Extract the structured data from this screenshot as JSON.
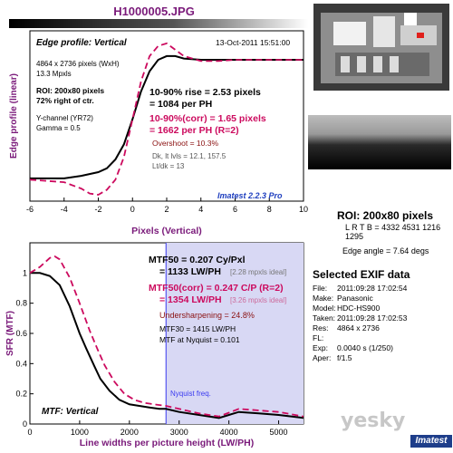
{
  "filename": "H1000005.JPG",
  "edge_panel": {
    "heading": "Edge profile: Vertical",
    "date": "13-Oct-2011 15:51:00",
    "info": [
      "4864 x 2736 pixels (WxH)",
      "13.3 Mpxls"
    ],
    "roi_info": [
      "ROI: 200x80 pixels",
      "72% right of ctr."
    ],
    "channel": [
      "Y-channel (YR72)",
      "Gamma = 0.5"
    ],
    "rise": [
      "10-90% rise = 2.53 pixels",
      "= 1084 per PH"
    ],
    "rise_corr": [
      "10-90%(corr) = 1.65 pixels",
      "= 1662 per PH (R=2)"
    ],
    "overshoot": "Overshoot = 10.3%",
    "levels": [
      "Dk, lt lvls = 12.1, 157.5",
      "Lt/dk = 13"
    ],
    "imatest": "Imatest 2.2.3 Pro"
  },
  "mtf_panel": {
    "mtf50": [
      "MTF50 = 0.207 Cy/Pxl",
      "= 1133 LW/PH"
    ],
    "mtf50_ideal": "[2.28 mpxls ideal]",
    "mtf50_corr": [
      "MTF50(corr) = 0.247 C/P (R=2)",
      "= 1354 LW/PH"
    ],
    "mtf50_corr_ideal": "[3.26 mpxls ideal]",
    "undersharpening": "Undersharpening = 24.8%",
    "mtf30": "MTF30 = 1415 LW/PH",
    "nyq": "MTF at Nyquist = 0.101",
    "nyq_label": "Nyquist freq.",
    "heading": "MTF: Vertical"
  },
  "roi": {
    "title": "ROI: 200x80 pixels",
    "sub": "L R T B = 4332 4531  1216 1295"
  },
  "edge_angle": "Edge angle = 7.64 degs",
  "exif": {
    "title": "Selected EXIF data",
    "rows": [
      {
        "k": "File:",
        "v": "2011:09:28 17:02:54"
      },
      {
        "k": "Make:",
        "v": "Panasonic"
      },
      {
        "k": "Model:",
        "v": "HDC-HS900"
      },
      {
        "k": "Taken:",
        "v": "2011:09:28 17:02:53"
      },
      {
        "k": "Res:",
        "v": "4864 x 2736"
      },
      {
        "k": "FL:",
        "v": ""
      },
      {
        "k": "Exp:",
        "v": "0.0040 s   (1/250)"
      },
      {
        "k": "Aper:",
        "v": "f/1.5"
      }
    ]
  },
  "watermark": "yesky",
  "brand": "Imatest",
  "colors": {
    "measured": "#000000",
    "corrected": "#cc0a5e",
    "title": "#7a1a7a",
    "nyquist_band": "#d8d8f4"
  },
  "chart_data": [
    {
      "type": "line",
      "xlabel": "Pixels (Vertical)",
      "ylabel": "Edge profile (linear)",
      "xlim": [
        -6,
        10
      ],
      "ylim": [
        -0.15,
        1.2
      ],
      "xticks": [
        "-6",
        "-4",
        "-2",
        "0",
        "2",
        "4",
        "6",
        "8",
        "10"
      ],
      "series": [
        {
          "style": "solid",
          "x": [
            -6,
            -4,
            -3,
            -2,
            -1.5,
            -1,
            -0.5,
            0,
            0.5,
            1,
            1.5,
            2,
            2.5,
            3,
            4,
            5,
            6,
            8,
            10
          ],
          "y": [
            0.03,
            0.03,
            0.05,
            0.08,
            0.11,
            0.18,
            0.3,
            0.5,
            0.72,
            0.88,
            0.97,
            1.0,
            1.0,
            0.98,
            0.97,
            0.97,
            0.97,
            0.97,
            0.97
          ]
        },
        {
          "style": "dashed",
          "x": [
            -6,
            -4,
            -3,
            -2.5,
            -2,
            -1.5,
            -1,
            -0.5,
            0,
            0.5,
            1,
            1.5,
            2,
            2.5,
            3,
            4,
            5,
            6,
            8,
            10
          ],
          "y": [
            0.02,
            0.0,
            -0.05,
            -0.09,
            -0.1,
            -0.06,
            0.02,
            0.2,
            0.5,
            0.8,
            1.0,
            1.08,
            1.1,
            1.05,
            1.0,
            0.96,
            0.96,
            0.97,
            0.97,
            0.97
          ]
        }
      ]
    },
    {
      "type": "line",
      "xlabel": "Line widths per picture height (LW/PH)",
      "ylabel": "SFR (MTF)",
      "xlim": [
        0,
        5500
      ],
      "ylim": [
        0,
        1.2
      ],
      "xticks": [
        "0",
        "1000",
        "2000",
        "3000",
        "4000",
        "5000"
      ],
      "yticks": [
        "0",
        "0.2",
        "0.4",
        "0.6",
        "0.8",
        "1"
      ],
      "nyquist": 2736,
      "series": [
        {
          "style": "solid",
          "x": [
            0,
            200,
            400,
            600,
            800,
            1000,
            1133,
            1300,
            1415,
            1600,
            1800,
            2000,
            2200,
            2400,
            2600,
            2736,
            3000,
            3400,
            3800,
            4200,
            4600,
            5000,
            5500
          ],
          "y": [
            1.0,
            1.0,
            0.98,
            0.92,
            0.78,
            0.6,
            0.5,
            0.38,
            0.3,
            0.22,
            0.16,
            0.13,
            0.12,
            0.11,
            0.1,
            0.1,
            0.08,
            0.06,
            0.04,
            0.08,
            0.07,
            0.06,
            0.04
          ]
        },
        {
          "style": "dashed",
          "x": [
            0,
            200,
            400,
            500,
            600,
            800,
            1000,
            1200,
            1354,
            1500,
            1700,
            1900,
            2100,
            2300,
            2500,
            2736,
            3000,
            3400,
            3800,
            4200,
            4600,
            5000,
            5500
          ],
          "y": [
            1.0,
            1.04,
            1.1,
            1.11,
            1.09,
            0.97,
            0.8,
            0.62,
            0.5,
            0.39,
            0.28,
            0.2,
            0.16,
            0.14,
            0.13,
            0.12,
            0.1,
            0.07,
            0.05,
            0.1,
            0.09,
            0.08,
            0.05
          ]
        }
      ]
    }
  ]
}
